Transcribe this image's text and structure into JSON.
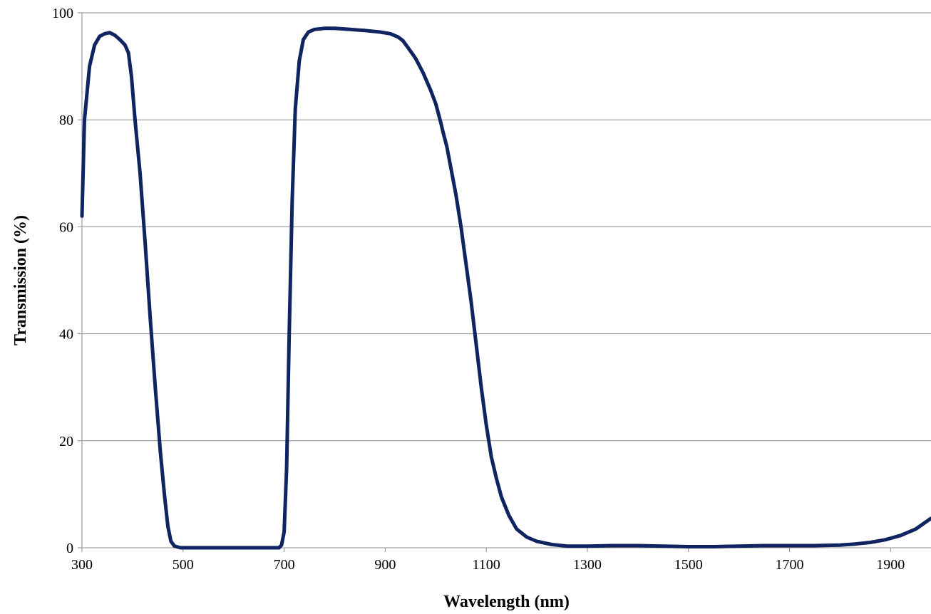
{
  "chart_data": {
    "type": "line",
    "title": "",
    "xlabel": "Wavelength (nm)",
    "ylabel": "Transmission (%)",
    "xlim": [
      300,
      1980
    ],
    "ylim": [
      0,
      100
    ],
    "x_ticks": [
      300,
      500,
      700,
      900,
      1100,
      1300,
      1500,
      1700,
      1900
    ],
    "y_ticks": [
      0,
      20,
      40,
      60,
      80,
      100
    ],
    "grid": "horizontal",
    "legend": "none",
    "series": [
      {
        "color": "#0f2461",
        "points": [
          [
            300,
            62
          ],
          [
            305,
            80
          ],
          [
            315,
            90
          ],
          [
            325,
            94
          ],
          [
            335,
            95.6
          ],
          [
            345,
            96.1
          ],
          [
            355,
            96.3
          ],
          [
            365,
            95.8
          ],
          [
            375,
            95
          ],
          [
            385,
            94
          ],
          [
            392,
            92.5
          ],
          [
            398,
            88
          ],
          [
            405,
            80
          ],
          [
            415,
            70
          ],
          [
            425,
            57
          ],
          [
            435,
            43
          ],
          [
            445,
            30
          ],
          [
            455,
            18
          ],
          [
            463,
            10
          ],
          [
            470,
            4
          ],
          [
            476,
            1.2
          ],
          [
            483,
            0.3
          ],
          [
            495,
            0
          ],
          [
            550,
            0
          ],
          [
            600,
            0
          ],
          [
            650,
            0
          ],
          [
            690,
            0
          ],
          [
            695,
            0.5
          ],
          [
            700,
            3
          ],
          [
            705,
            15
          ],
          [
            710,
            40
          ],
          [
            716,
            65
          ],
          [
            722,
            82
          ],
          [
            730,
            91
          ],
          [
            738,
            95
          ],
          [
            748,
            96.4
          ],
          [
            760,
            96.9
          ],
          [
            780,
            97.1
          ],
          [
            800,
            97.1
          ],
          [
            830,
            96.9
          ],
          [
            860,
            96.7
          ],
          [
            890,
            96.4
          ],
          [
            910,
            96.1
          ],
          [
            925,
            95.5
          ],
          [
            935,
            94.8
          ],
          [
            945,
            93.5
          ],
          [
            960,
            91.5
          ],
          [
            975,
            88.8
          ],
          [
            990,
            85.5
          ],
          [
            1000,
            83
          ],
          [
            1010,
            79.5
          ],
          [
            1015,
            77.5
          ],
          [
            1022,
            75
          ],
          [
            1030,
            71
          ],
          [
            1040,
            66
          ],
          [
            1050,
            60
          ],
          [
            1060,
            53
          ],
          [
            1070,
            46
          ],
          [
            1080,
            38
          ],
          [
            1090,
            30
          ],
          [
            1100,
            23
          ],
          [
            1110,
            17
          ],
          [
            1120,
            13
          ],
          [
            1130,
            9.5
          ],
          [
            1145,
            6
          ],
          [
            1160,
            3.5
          ],
          [
            1180,
            2
          ],
          [
            1200,
            1.2
          ],
          [
            1230,
            0.6
          ],
          [
            1260,
            0.3
          ],
          [
            1300,
            0.3
          ],
          [
            1350,
            0.4
          ],
          [
            1400,
            0.4
          ],
          [
            1450,
            0.3
          ],
          [
            1500,
            0.2
          ],
          [
            1550,
            0.2
          ],
          [
            1600,
            0.3
          ],
          [
            1650,
            0.4
          ],
          [
            1700,
            0.4
          ],
          [
            1750,
            0.4
          ],
          [
            1800,
            0.5
          ],
          [
            1830,
            0.7
          ],
          [
            1860,
            1
          ],
          [
            1890,
            1.5
          ],
          [
            1920,
            2.3
          ],
          [
            1950,
            3.5
          ],
          [
            1980,
            5.5
          ]
        ]
      }
    ]
  }
}
